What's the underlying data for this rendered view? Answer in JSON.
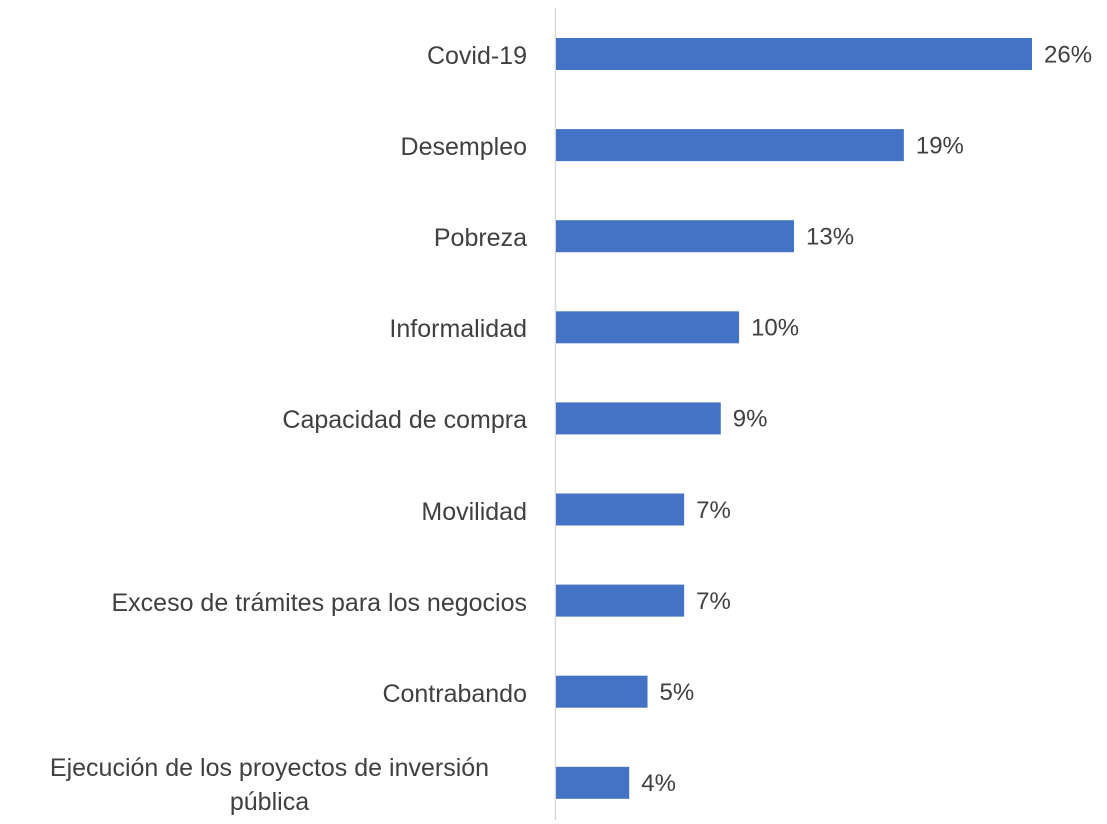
{
  "chart_data": {
    "type": "bar",
    "orientation": "horizontal",
    "categories": [
      "Covid-19",
      "Desempleo",
      "Pobreza",
      "Informalidad",
      "Capacidad de compra",
      "Movilidad",
      "Exceso de trámites para los negocios",
      "Contrabando",
      "Ejecución de los proyectos de inversión pública"
    ],
    "values": [
      26,
      19,
      13,
      10,
      9,
      7,
      7,
      5,
      4
    ],
    "value_labels": [
      "26%",
      "19%",
      "13%",
      "10%",
      "9%",
      "7%",
      "7%",
      "5%",
      "4%"
    ],
    "color": "#4472c4"
  }
}
